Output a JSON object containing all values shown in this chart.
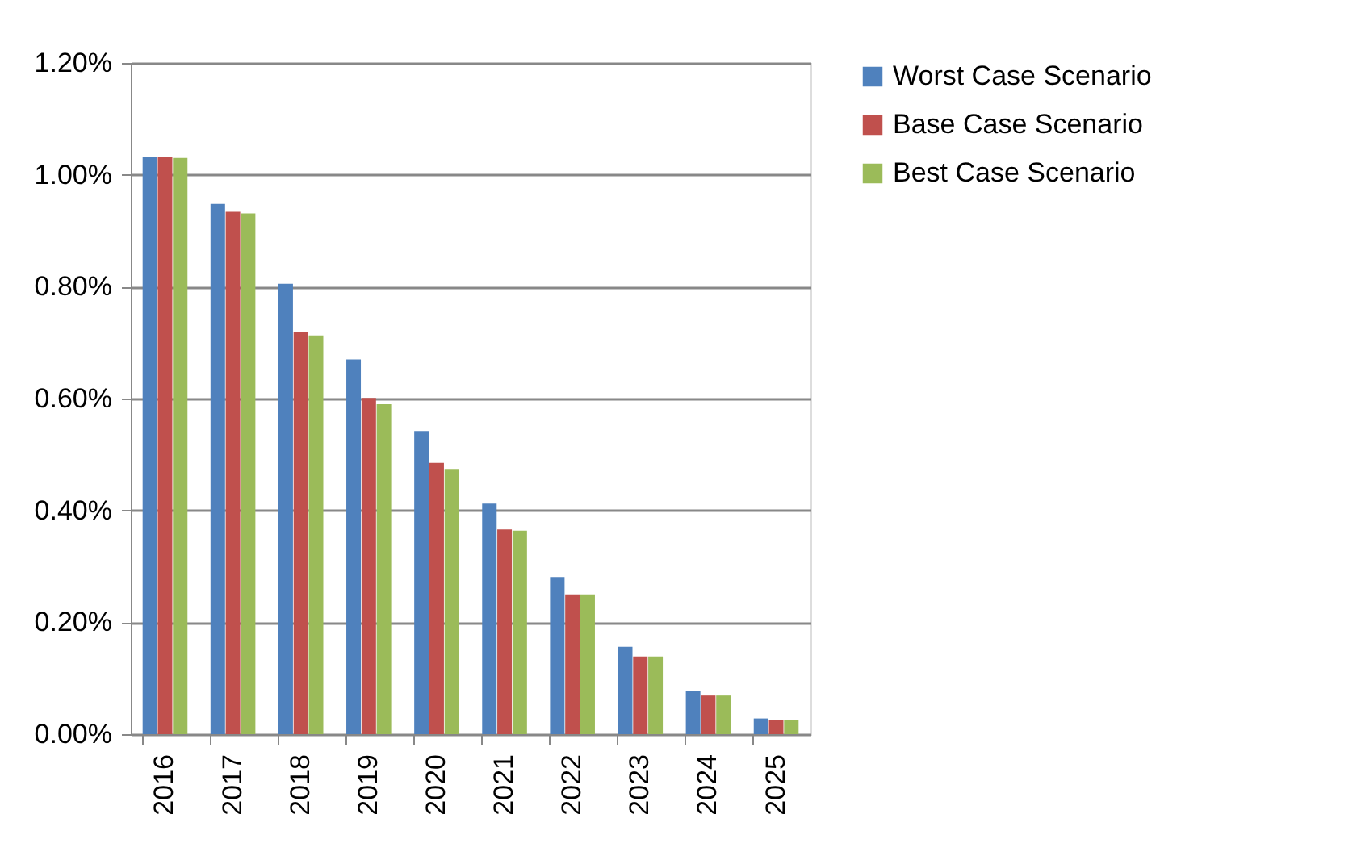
{
  "chart_data": {
    "type": "bar",
    "categories": [
      "2016",
      "2017",
      "2018",
      "2019",
      "2020",
      "2021",
      "2022",
      "2023",
      "2024",
      "2025"
    ],
    "series": [
      {
        "name": "Worst Case Scenario",
        "color": "#4f81bd",
        "values": [
          1.032,
          0.948,
          0.805,
          0.67,
          0.542,
          0.412,
          0.281,
          0.156,
          0.077,
          0.028
        ]
      },
      {
        "name": "Base Case Scenario",
        "color": "#c0504d",
        "values": [
          1.032,
          0.934,
          0.719,
          0.601,
          0.485,
          0.366,
          0.25,
          0.139,
          0.069,
          0.025
        ]
      },
      {
        "name": "Best Case Scenario",
        "color": "#9bbb59",
        "values": [
          1.03,
          0.931,
          0.713,
          0.59,
          0.474,
          0.364,
          0.25,
          0.139,
          0.069,
          0.025
        ]
      }
    ],
    "ylim": [
      0,
      1.2
    ],
    "yticks": [
      {
        "value": 0,
        "label": "0.00%"
      },
      {
        "value": 0.2,
        "label": "0.20%"
      },
      {
        "value": 0.4,
        "label": "0.40%"
      },
      {
        "value": 0.6,
        "label": "0.60%"
      },
      {
        "value": 0.8,
        "label": "0.80%"
      },
      {
        "value": 1.0,
        "label": "1.00%"
      },
      {
        "value": 1.2,
        "label": "1.20%"
      }
    ],
    "grid": "y",
    "legend": "right"
  }
}
